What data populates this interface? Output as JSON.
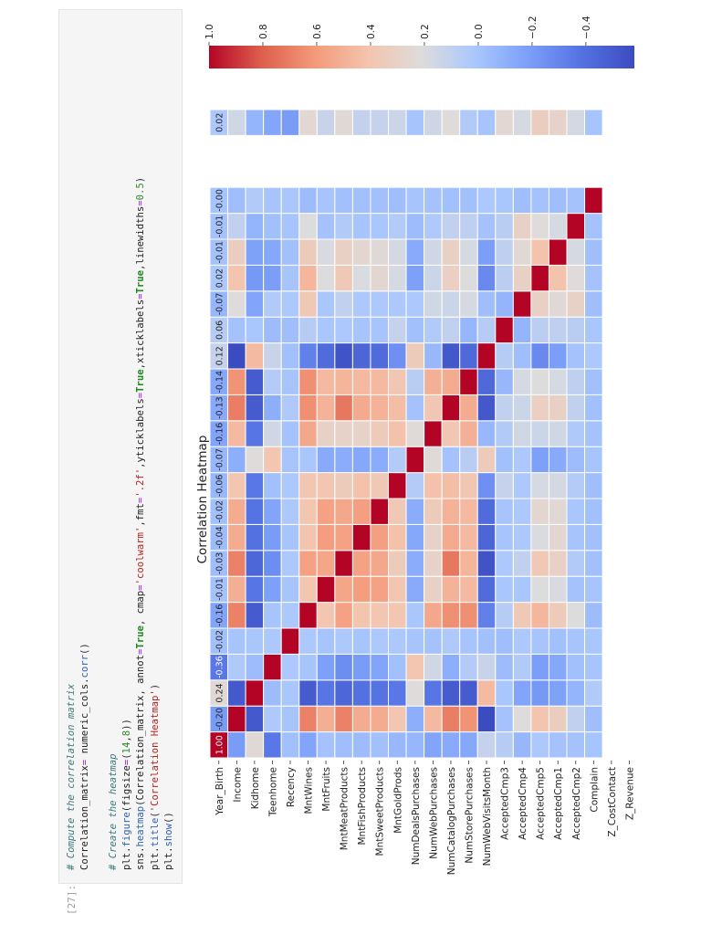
{
  "cell": {
    "prompt": "[27]:",
    "code_lines": [
      [
        {
          "t": "comment",
          "s": "# Compute the correlation matrix"
        }
      ],
      [
        {
          "t": "plain",
          "s": "Correlation_matrix"
        },
        {
          "t": "op",
          "s": "="
        },
        {
          "t": "plain",
          "s": " numeric_cols."
        },
        {
          "t": "fn",
          "s": "corr"
        },
        {
          "t": "plain",
          "s": "()"
        }
      ],
      [],
      [
        {
          "t": "comment",
          "s": "# Create the heatmap"
        }
      ],
      [
        {
          "t": "plain",
          "s": "plt."
        },
        {
          "t": "fn",
          "s": "figure"
        },
        {
          "t": "plain",
          "s": "(figsize"
        },
        {
          "t": "op",
          "s": "="
        },
        {
          "t": "plain",
          "s": "("
        },
        {
          "t": "num",
          "s": "14"
        },
        {
          "t": "plain",
          "s": ","
        },
        {
          "t": "num",
          "s": "8"
        },
        {
          "t": "plain",
          "s": "))"
        }
      ],
      [
        {
          "t": "plain",
          "s": "sns."
        },
        {
          "t": "fn",
          "s": "heatmap"
        },
        {
          "t": "plain",
          "s": "(Correlation_matrix, annot"
        },
        {
          "t": "op",
          "s": "="
        },
        {
          "t": "kw",
          "s": "True"
        },
        {
          "t": "plain",
          "s": ", cmap"
        },
        {
          "t": "op",
          "s": "="
        },
        {
          "t": "str",
          "s": "'coolwarm'"
        },
        {
          "t": "plain",
          "s": ",fmt"
        },
        {
          "t": "op",
          "s": "="
        },
        {
          "t": "str",
          "s": "'.2f'"
        },
        {
          "t": "plain",
          "s": ",yticklabels"
        },
        {
          "t": "op",
          "s": "="
        },
        {
          "t": "kw",
          "s": "True"
        },
        {
          "t": "plain",
          "s": ",xticklabels"
        },
        {
          "t": "op",
          "s": "="
        },
        {
          "t": "kw",
          "s": "True"
        },
        {
          "t": "plain",
          "s": ",linewidths"
        },
        {
          "t": "op",
          "s": "="
        },
        {
          "t": "num",
          "s": "0.5"
        },
        {
          "t": "plain",
          "s": ")"
        }
      ],
      [
        {
          "t": "plain",
          "s": "plt."
        },
        {
          "t": "fn",
          "s": "title"
        },
        {
          "t": "plain",
          "s": "("
        },
        {
          "t": "str",
          "s": "'Correlation Heatmap'"
        },
        {
          "t": "plain",
          "s": ")"
        }
      ],
      [
        {
          "t": "plain",
          "s": "plt."
        },
        {
          "t": "fn",
          "s": "show"
        },
        {
          "t": "plain",
          "s": "()"
        }
      ]
    ]
  },
  "chart_data": {
    "type": "heatmap",
    "title": "Correlation Heatmap",
    "colormap": "coolwarm",
    "color_range": [
      -0.58,
      1.0
    ],
    "colorbar_ticks": [
      "1.0",
      "0.8",
      "0.6",
      "0.4",
      "0.2",
      "0.0",
      "−0.2",
      "−0.4"
    ],
    "row_labels": [
      "Year_Birth",
      "Income",
      "Kidhome",
      "Teenhome",
      "Recency",
      "MntWines",
      "MntFruits",
      "MntMeatProducts",
      "MntFishProducts",
      "MntSweetProducts",
      "MntGoldProds",
      "NumDealsPurchases",
      "NumWebPurchases",
      "NumCatalogPurchases",
      "NumStorePurchases",
      "NumWebVisitsMonth",
      "AcceptedCmp3",
      "AcceptedCmp4",
      "AcceptedCmp5",
      "AcceptedCmp1",
      "AcceptedCmp2",
      "Complain",
      "Z_CostContact",
      "Z_Revenue"
    ],
    "empty_columns_after_main": 2,
    "upper_triangle": [
      [
        -0.2,
        0.24,
        -0.36,
        -0.02,
        -0.16,
        -0.01,
        -0.03,
        -0.04,
        -0.02,
        -0.06,
        -0.07,
        -0.16,
        -0.13,
        -0.14,
        0.12,
        0.06,
        -0.07,
        0.02,
        -0.01,
        -0.01,
        -0.004
      ],
      [
        -0.51,
        0.03,
        0.0,
        0.69,
        0.51,
        0.69,
        0.52,
        0.52,
        0.39,
        -0.11,
        0.46,
        0.7,
        0.63,
        -0.58,
        -0.01,
        0.22,
        0.4,
        0.33,
        0.1,
        -0.03
      ],
      [
        -0.04,
        0.01,
        -0.5,
        -0.37,
        -0.44,
        -0.39,
        -0.38,
        -0.36,
        0.22,
        -0.37,
        -0.5,
        -0.5,
        0.45,
        0.01,
        -0.16,
        -0.21,
        -0.17,
        -0.08,
        0.04
      ],
      [
        0.02,
        0.0,
        -0.18,
        -0.26,
        -0.2,
        -0.16,
        -0.02,
        0.39,
        0.16,
        -0.11,
        0.05,
        0.13,
        -0.04,
        0.04,
        -0.19,
        -0.14,
        -0.02,
        0.0
      ],
      [
        0.02,
        0.0,
        0.02,
        0.0,
        0.02,
        0.02,
        0.0,
        -0.01,
        0.03,
        0.0,
        -0.02,
        -0.03,
        0.02,
        0.0,
        -0.02,
        0.0,
        0.01
      ],
      [
        0.39,
        0.57,
        0.4,
        0.39,
        0.39,
        0.01,
        0.54,
        0.64,
        0.64,
        -0.32,
        0.06,
        0.37,
        0.47,
        0.35,
        0.21,
        -0.04
      ],
      [
        0.55,
        0.59,
        0.57,
        0.39,
        -0.13,
        0.3,
        0.49,
        0.46,
        -0.42,
        0.01,
        0.01,
        0.21,
        0.19,
        -0.01,
        0.0
      ],
      [
        0.57,
        0.54,
        0.35,
        -0.12,
        0.29,
        0.72,
        0.48,
        -0.54,
        0.02,
        0.1,
        0.37,
        0.31,
        0.04,
        -0.02
      ],
      [
        0.58,
        0.42,
        -0.14,
        0.29,
        0.53,
        0.46,
        -0.45,
        0.0,
        0.02,
        0.2,
        0.26,
        0.0,
        -0.02
      ],
      [
        0.37,
        -0.12,
        0.35,
        0.49,
        0.46,
        -0.42,
        0.0,
        0.02,
        0.26,
        0.24,
        0.01,
        -0.02
      ],
      [
        0.05,
        0.42,
        0.44,
        0.38,
        -0.25,
        0.12,
        0.02,
        0.18,
        0.17,
        0.05,
        -0.03
      ],
      [
        0.23,
        -0.01,
        0.07,
        0.35,
        -0.02,
        0.02,
        -0.18,
        -0.13,
        -0.04,
        0.0
      ],
      [
        0.38,
        0.5,
        -0.06,
        0.04,
        0.16,
        0.14,
        0.16,
        0.03,
        -0.01
      ],
      [
        0.52,
        -0.52,
        0.1,
        0.14,
        0.32,
        0.31,
        0.1,
        -0.02
      ],
      [
        -0.43,
        -0.07,
        0.18,
        0.21,
        0.18,
        0.09,
        -0.02
      ],
      [
        0.06,
        -0.03,
        -0.28,
        -0.19,
        -0.01,
        0.02
      ],
      [
        -0.08,
        0.08,
        0.09,
        0.07,
        0.01
      ],
      [
        0.31,
        0.24,
        0.3,
        -0.03
      ],
      [
        0.41,
        0.22,
        -0.01
      ],
      [
        0.18,
        -0.03
      ],
      [
        -0.01
      ],
      []
    ],
    "last_column_values": [
      0.02,
      0.16,
      -0.08,
      -0.15,
      -0.2,
      0.25,
      0.13,
      0.24,
      0.11,
      0.12,
      0.14,
      0.0,
      0.15,
      0.22,
      0.04,
      0.0,
      0.25,
      0.18,
      0.33,
      0.29,
      0.17,
      0.0
    ],
    "annotated_rows": [
      0
    ]
  }
}
